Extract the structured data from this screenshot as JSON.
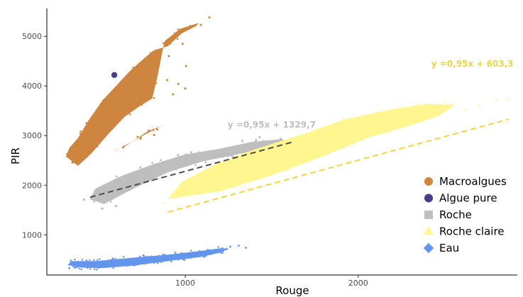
{
  "chart_data": {
    "type": "scatter",
    "xlabel": "Rouge",
    "ylabel": "PIR",
    "xlim": [
      200,
      2920
    ],
    "ylim": [
      190,
      5560
    ],
    "x_ticks": [
      1000,
      2000
    ],
    "y_ticks": [
      1000,
      2000,
      3000,
      4000,
      5000
    ],
    "grid": false,
    "legend_position": "right",
    "colors": {
      "macroalgues": "#cd853f",
      "algue_pure": "#483d8b",
      "roche": "#bebebe",
      "roche_claire": "#fff68f",
      "eau": "#6495ed",
      "roche_fit": "#4d4d4d",
      "roche_claire_fit": "#f5d442",
      "roche_eq": "#bebebe",
      "roche_claire_eq": "#e8d44d"
    },
    "series": [
      {
        "name": "Macroalgues",
        "marker": "circle",
        "color": "#cd853f",
        "regions": [
          {
            "points": [
              [
                310,
                2580
              ],
              [
                380,
                2390
              ],
              [
                460,
                2650
              ],
              [
                560,
                3050
              ],
              [
                650,
                3380
              ],
              [
                740,
                3600
              ],
              [
                810,
                3750
              ],
              [
                840,
                4200
              ],
              [
                880,
                4900
              ],
              [
                970,
                5150
              ],
              [
                1080,
                5270
              ],
              [
                1060,
                5200
              ],
              [
                980,
                5060
              ],
              [
                900,
                4800
              ],
              [
                820,
                4720
              ],
              [
                760,
                4550
              ],
              [
                680,
                4300
              ],
              [
                600,
                4000
              ],
              [
                520,
                3700
              ],
              [
                440,
                3300
              ],
              [
                380,
                2950
              ],
              [
                330,
                2750
              ]
            ]
          },
          {
            "points": [
              [
                560,
                2650
              ],
              [
                660,
                2800
              ],
              [
                780,
                3080
              ],
              [
                880,
                3220
              ],
              [
                830,
                3140
              ],
              [
                720,
                2930
              ],
              [
                610,
                2720
              ]
            ]
          }
        ],
        "outliers": [
          [
            1140,
            5380
          ],
          [
            1090,
            5230
          ],
          [
            985,
            4850
          ],
          [
            905,
            4600
          ],
          [
            1005,
            4400
          ],
          [
            895,
            4120
          ],
          [
            960,
            4040
          ],
          [
            1000,
            3950
          ],
          [
            820,
            3010
          ],
          [
            350,
            2460
          ],
          [
            360,
            2820
          ],
          [
            460,
            3150
          ],
          [
            520,
            3530
          ],
          [
            610,
            3900
          ],
          [
            930,
            3830
          ]
        ]
      },
      {
        "name": "Algue pure",
        "marker": "circle",
        "color": "#483d8b",
        "points": [
          [
            590,
            4220
          ]
        ]
      },
      {
        "name": "Roche",
        "marker": "square",
        "color": "#bebebe",
        "regions": [
          {
            "points": [
              [
                450,
                1720
              ],
              [
                530,
                1620
              ],
              [
                700,
                1930
              ],
              [
                900,
                2260
              ],
              [
                1100,
                2480
              ],
              [
                1300,
                2620
              ],
              [
                1500,
                2770
              ],
              [
                1600,
                2850
              ],
              [
                1560,
                2930
              ],
              [
                1380,
                2870
              ],
              [
                1190,
                2730
              ],
              [
                1000,
                2620
              ],
              [
                820,
                2430
              ],
              [
                620,
                2170
              ],
              [
                480,
                1930
              ]
            ]
          }
        ],
        "outliers": [
          [
            415,
            1710
          ],
          [
            520,
            1530
          ],
          [
            600,
            1580
          ],
          [
            1430,
            2970
          ],
          [
            1330,
            2890
          ],
          [
            470,
            1810
          ]
        ]
      },
      {
        "name": "Roche claire",
        "marker": "triangle",
        "color": "#fff68f",
        "regions": [
          {
            "points": [
              [
                900,
                1720
              ],
              [
                1200,
                1880
              ],
              [
                1500,
                2200
              ],
              [
                1800,
                2590
              ],
              [
                2050,
                2950
              ],
              [
                2300,
                3200
              ],
              [
                2480,
                3420
              ],
              [
                2560,
                3620
              ],
              [
                2400,
                3640
              ],
              [
                2150,
                3500
              ],
              [
                1900,
                3300
              ],
              [
                1700,
                3050
              ],
              [
                1400,
                2720
              ],
              [
                1180,
                2430
              ],
              [
                980,
                2060
              ]
            ]
          }
        ],
        "outliers": [
          [
            2700,
            3600
          ],
          [
            2620,
            3530
          ],
          [
            2800,
            3710
          ],
          [
            2860,
            3740
          ],
          [
            880,
            1640
          ],
          [
            2500,
            3700
          ]
        ]
      },
      {
        "name": "Eau",
        "marker": "diamond",
        "color": "#6495ed",
        "regions": [
          {
            "points": [
              [
                320,
                390
              ],
              [
                400,
                340
              ],
              [
                520,
                330
              ],
              [
                700,
                380
              ],
              [
                900,
                470
              ],
              [
                1100,
                560
              ],
              [
                1200,
                640
              ],
              [
                1250,
                720
              ],
              [
                1200,
                730
              ],
              [
                1100,
                680
              ],
              [
                900,
                600
              ],
              [
                700,
                540
              ],
              [
                480,
                470
              ],
              [
                340,
                470
              ]
            ]
          }
        ],
        "outliers": [
          [
            1310,
            780
          ],
          [
            1260,
            760
          ],
          [
            1350,
            740
          ],
          [
            1220,
            700
          ],
          [
            330,
            330
          ]
        ]
      }
    ],
    "regression_lines": [
      {
        "series": "Roche",
        "equation": "y =0,95x + 1329,7",
        "slope": 0.95,
        "intercept": 1329.7,
        "x_range": [
          450,
          1620
        ],
        "label_at": [
          1500,
          3160
        ]
      },
      {
        "series": "Roche claire",
        "equation": "y =0,95x + 603,3",
        "slope": 0.95,
        "intercept": 603.3,
        "x_range": [
          900,
          2870
        ],
        "label_at": [
          2660,
          4390
        ]
      }
    ]
  }
}
